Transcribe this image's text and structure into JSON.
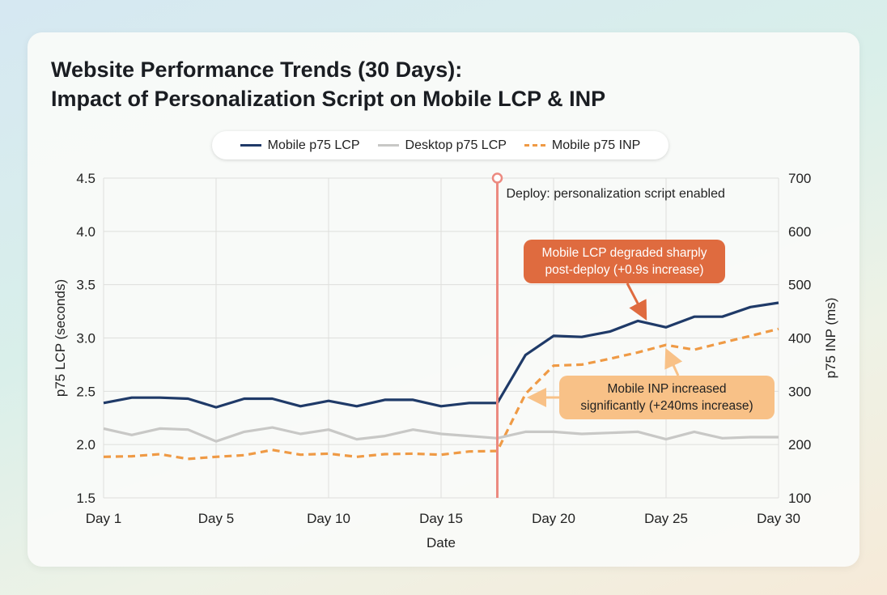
{
  "title_line1": "Website Performance Trends (30 Days):",
  "title_line2": "Impact of Personalization Script on Mobile LCP & INP",
  "chart_data": {
    "type": "line",
    "xlabel": "Date",
    "ylabel": "p75 LCP (seconds)",
    "y2label": "p75 INP (ms)",
    "categories": [
      "Day 1",
      "",
      "",
      "",
      "Day 5",
      "",
      "",
      "",
      "Day 10",
      "",
      "",
      "",
      "Day 15",
      "",
      "",
      "",
      "Day 20",
      "",
      "",
      "",
      "Day 25",
      "",
      "",
      "",
      "Day 30"
    ],
    "xticks": [
      {
        "index": 0,
        "label": "Day 1"
      },
      {
        "index": 4,
        "label": "Day 5"
      },
      {
        "index": 8,
        "label": "Day 10"
      },
      {
        "index": 12,
        "label": "Day 15"
      },
      {
        "index": 16,
        "label": "Day 20"
      },
      {
        "index": 20,
        "label": "Day 25"
      },
      {
        "index": 24,
        "label": "Day 30"
      }
    ],
    "ylim": [
      1.5,
      4.5
    ],
    "yticks": [
      "1.5",
      "2.0",
      "2.5",
      "3.0",
      "3.5",
      "4.0",
      "4.5"
    ],
    "y2lim": [
      100,
      700
    ],
    "y2ticks": [
      "100",
      "200",
      "300",
      "400",
      "500",
      "600",
      "700"
    ],
    "grid": true,
    "legend_placement": "top-center",
    "series": [
      {
        "name": "Mobile p75 LCP",
        "axis": "left",
        "color": "#1f3a68",
        "style": "solid",
        "values": [
          2.39,
          2.44,
          2.44,
          2.43,
          2.35,
          2.43,
          2.43,
          2.36,
          2.41,
          2.36,
          2.42,
          2.42,
          2.36,
          2.39,
          2.39,
          2.84,
          3.02,
          3.01,
          3.06,
          3.16,
          3.1,
          3.2,
          3.2,
          3.29,
          3.33
        ]
      },
      {
        "name": "Desktop p75 LCP",
        "axis": "left",
        "color": "#c8c8c6",
        "style": "solid",
        "values": [
          2.15,
          2.09,
          2.15,
          2.14,
          2.03,
          2.12,
          2.16,
          2.1,
          2.14,
          2.05,
          2.08,
          2.14,
          2.1,
          2.08,
          2.06,
          2.12,
          2.12,
          2.1,
          2.11,
          2.12,
          2.05,
          2.12,
          2.06,
          2.07,
          2.07
        ]
      },
      {
        "name": "Mobile p75 INP",
        "axis": "right",
        "color": "#ef9a45",
        "style": "dashed",
        "values": [
          177,
          178,
          182,
          173,
          177,
          180,
          190,
          181,
          183,
          177,
          182,
          183,
          181,
          187,
          188,
          295,
          348,
          350,
          361,
          373,
          387,
          378,
          391,
          404,
          417
        ]
      }
    ],
    "deploy_marker": {
      "index": 14,
      "label": "Deploy: personalization script enabled",
      "color": "#ec8a80"
    },
    "annotations": [
      {
        "text": "Mobile LCP degraded sharply post-deploy (+0.9s increase)",
        "line1": "Mobile LCP degraded sharply",
        "line2": "post-deploy (+0.9s increase)",
        "color": "#df6b3f",
        "points_to_index": 19
      },
      {
        "text": "Mobile INP increased significantly (+240ms increase)",
        "line1": "Mobile INP increased",
        "line2": "significantly (+240ms increase)",
        "color": "#f8c187",
        "points_to_index": 20
      }
    ]
  }
}
